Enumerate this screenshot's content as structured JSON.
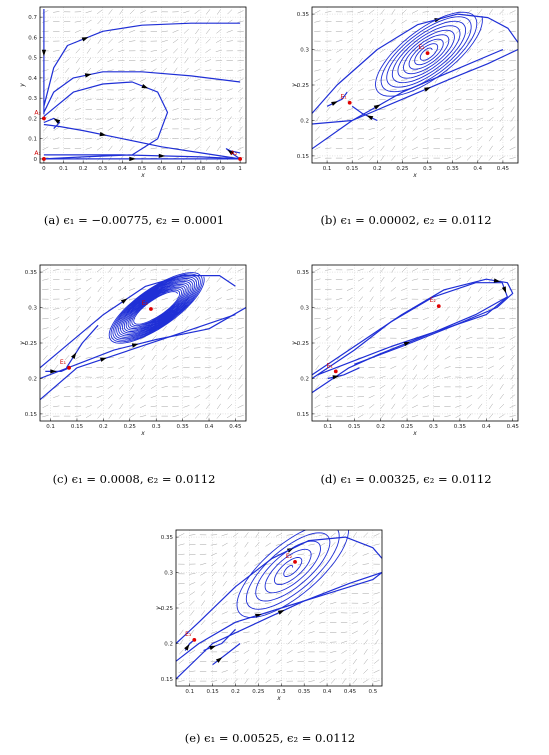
{
  "figure": {
    "panels": [
      {
        "caption": "(a)  ϵ₁ = −0.00775,  ϵ₂ = 0.0001"
      },
      {
        "caption": "(b)  ϵ₁ = 0.00002,  ϵ₂ = 0.0112"
      },
      {
        "caption": "(c)  ϵ₁ = 0.0008,  ϵ₂ = 0.0112"
      },
      {
        "caption": "(d)  ϵ₁ = 0.00325,  ϵ₂ = 0.0112"
      },
      {
        "caption": "(e)  ϵ₁ = 0.00525,  ϵ₂ = 0.0112"
      }
    ]
  },
  "chart_data": [
    {
      "type": "phase-portrait",
      "xlabel": "x",
      "ylabel": "y",
      "xlim": [
        -0.02,
        1.03
      ],
      "ylim": [
        -0.02,
        0.75
      ],
      "xticks": [
        "0",
        "0.1",
        "0.2",
        "0.3",
        "0.4",
        "0.5",
        "0.6",
        "0.7",
        "0.8",
        "0.9",
        "1"
      ],
      "xtick_values": [
        0,
        0.1,
        0.2,
        0.3,
        0.4,
        0.5,
        0.6,
        0.7,
        0.8,
        0.9,
        1
      ],
      "yticks": [
        "0",
        "0.1",
        "0.2",
        "0.3",
        "0.4",
        "0.5",
        "0.6",
        "0.7"
      ],
      "ytick_values": [
        0,
        0.1,
        0.2,
        0.3,
        0.4,
        0.5,
        0.6,
        0.7
      ],
      "equilibria": [
        {
          "label": "A₁",
          "x": 0.0,
          "y": 0.0
        },
        {
          "label": "A₂",
          "x": 1.0,
          "y": 0.0
        },
        {
          "label": "A₃",
          "x": 0.0,
          "y": 0.2
        }
      ],
      "trajectories": [
        [
          [
            0.0,
            0.74
          ],
          [
            0.0,
            0.6
          ],
          [
            0.0,
            0.45
          ],
          [
            0.0,
            0.3
          ],
          [
            0.0,
            0.22
          ]
        ],
        [
          [
            0.0,
            0.26
          ],
          [
            0.05,
            0.45
          ],
          [
            0.12,
            0.56
          ],
          [
            0.3,
            0.63
          ],
          [
            0.5,
            0.66
          ],
          [
            0.75,
            0.67
          ],
          [
            1.0,
            0.67
          ]
        ],
        [
          [
            0.0,
            0.23
          ],
          [
            0.05,
            0.33
          ],
          [
            0.15,
            0.4
          ],
          [
            0.3,
            0.43
          ],
          [
            0.5,
            0.43
          ],
          [
            0.75,
            0.41
          ],
          [
            1.0,
            0.38
          ]
        ],
        [
          [
            0.0,
            0.21
          ],
          [
            0.05,
            0.25
          ],
          [
            0.15,
            0.33
          ],
          [
            0.3,
            0.37
          ],
          [
            0.45,
            0.38
          ],
          [
            0.58,
            0.33
          ],
          [
            0.63,
            0.23
          ],
          [
            0.58,
            0.1
          ],
          [
            0.45,
            0.02
          ],
          [
            0.2,
            0.01
          ],
          [
            0.0,
            0.0
          ]
        ],
        [
          [
            0.0,
            0.17
          ],
          [
            0.08,
            0.16
          ],
          [
            0.2,
            0.14
          ],
          [
            0.4,
            0.1
          ],
          [
            0.6,
            0.06
          ],
          [
            0.8,
            0.03
          ],
          [
            1.0,
            0.0
          ]
        ],
        [
          [
            0.05,
            0.15
          ],
          [
            0.08,
            0.18
          ],
          [
            0.05,
            0.2
          ],
          [
            0.0,
            0.18
          ]
        ],
        [
          [
            0.0,
            0.0
          ],
          [
            0.3,
            0.0
          ],
          [
            0.6,
            0.0
          ],
          [
            0.9,
            0.0
          ],
          [
            1.0,
            0.0
          ]
        ],
        [
          [
            0.0,
            0.02
          ],
          [
            0.4,
            0.02
          ],
          [
            0.8,
            0.01
          ],
          [
            1.0,
            0.0
          ]
        ],
        [
          [
            1.0,
            0.0
          ],
          [
            0.97,
            0.02
          ],
          [
            0.93,
            0.05
          ],
          [
            0.95,
            0.04
          ],
          [
            1.0,
            0.03
          ]
        ]
      ]
    },
    {
      "type": "phase-portrait",
      "xlabel": "x",
      "ylabel": "y",
      "xlim": [
        0.07,
        0.48
      ],
      "ylim": [
        0.14,
        0.36
      ],
      "xticks": [
        "0.1",
        "0.15",
        "0.2",
        "0.25",
        "0.3",
        "0.35",
        "0.4",
        "0.45"
      ],
      "xtick_values": [
        0.1,
        0.15,
        0.2,
        0.25,
        0.3,
        0.35,
        0.4,
        0.45
      ],
      "yticks": [
        "0.15",
        "0.2",
        "0.25",
        "0.3",
        "0.35"
      ],
      "ytick_values": [
        0.15,
        0.2,
        0.25,
        0.3,
        0.35
      ],
      "equilibria": [
        {
          "label": "E₁",
          "x": 0.145,
          "y": 0.225
        },
        {
          "label": "E₂",
          "x": 0.3,
          "y": 0.295
        }
      ],
      "trajectories": [
        [
          [
            0.07,
            0.21
          ],
          [
            0.12,
            0.25
          ],
          [
            0.2,
            0.3
          ],
          [
            0.28,
            0.335
          ],
          [
            0.36,
            0.35
          ],
          [
            0.42,
            0.345
          ],
          [
            0.46,
            0.33
          ],
          [
            0.48,
            0.31
          ]
        ],
        [
          [
            0.07,
            0.195
          ],
          [
            0.15,
            0.2
          ],
          [
            0.25,
            0.24
          ],
          [
            0.35,
            0.27
          ],
          [
            0.45,
            0.3
          ]
        ],
        [
          [
            0.07,
            0.16
          ],
          [
            0.15,
            0.2
          ],
          [
            0.25,
            0.23
          ],
          [
            0.35,
            0.26
          ],
          [
            0.42,
            0.28
          ],
          [
            0.48,
            0.3
          ]
        ],
        [
          [
            0.1,
            0.22
          ],
          [
            0.13,
            0.23
          ],
          [
            0.14,
            0.24
          ]
        ],
        [
          [
            0.2,
            0.2
          ],
          [
            0.17,
            0.21
          ],
          [
            0.15,
            0.22
          ]
        ]
      ],
      "spirals": [
        {
          "cx": 0.3,
          "cy": 0.295,
          "rx": [
            0.01,
            0.12
          ],
          "ry": [
            0.005,
            0.04
          ],
          "turns": 9
        }
      ]
    },
    {
      "type": "phase-portrait",
      "xlabel": "x",
      "ylabel": "y",
      "xlim": [
        0.08,
        0.47
      ],
      "ylim": [
        0.14,
        0.36
      ],
      "xticks": [
        "0.1",
        "0.15",
        "0.2",
        "0.25",
        "0.3",
        "0.35",
        "0.4",
        "0.45"
      ],
      "xtick_values": [
        0.1,
        0.15,
        0.2,
        0.25,
        0.3,
        0.35,
        0.4,
        0.45
      ],
      "yticks": [
        "0.15",
        "0.2",
        "0.25",
        "0.3",
        "0.35"
      ],
      "ytick_values": [
        0.15,
        0.2,
        0.25,
        0.3,
        0.35
      ],
      "equilibria": [
        {
          "label": "E₁",
          "x": 0.135,
          "y": 0.215
        },
        {
          "label": "E₂",
          "x": 0.29,
          "y": 0.298
        }
      ],
      "trajectories": [
        [
          [
            0.08,
            0.215
          ],
          [
            0.12,
            0.24
          ],
          [
            0.2,
            0.29
          ],
          [
            0.28,
            0.33
          ],
          [
            0.35,
            0.345
          ],
          [
            0.42,
            0.345
          ],
          [
            0.45,
            0.33
          ]
        ],
        [
          [
            0.08,
            0.2
          ],
          [
            0.15,
            0.22
          ],
          [
            0.22,
            0.24
          ],
          [
            0.3,
            0.255
          ],
          [
            0.4,
            0.27
          ],
          [
            0.47,
            0.3
          ]
        ],
        [
          [
            0.08,
            0.17
          ],
          [
            0.15,
            0.215
          ],
          [
            0.25,
            0.24
          ],
          [
            0.35,
            0.265
          ],
          [
            0.45,
            0.29
          ]
        ],
        [
          [
            0.13,
            0.215
          ],
          [
            0.16,
            0.25
          ],
          [
            0.19,
            0.275
          ]
        ],
        [
          [
            0.09,
            0.21
          ],
          [
            0.12,
            0.21
          ],
          [
            0.135,
            0.215
          ]
        ]
      ],
      "spirals": [
        {
          "cx": 0.3,
          "cy": 0.3,
          "rx": [
            0.045,
            0.1
          ],
          "ry": [
            0.012,
            0.03
          ],
          "turns": 14
        }
      ]
    },
    {
      "type": "phase-portrait",
      "xlabel": "x",
      "ylabel": "y",
      "xlim": [
        0.07,
        0.46
      ],
      "ylim": [
        0.14,
        0.36
      ],
      "xticks": [
        "0.1",
        "0.15",
        "0.2",
        "0.25",
        "0.3",
        "0.35",
        "0.4",
        "0.45"
      ],
      "xtick_values": [
        0.1,
        0.15,
        0.2,
        0.25,
        0.3,
        0.35,
        0.4,
        0.45
      ],
      "yticks": [
        "0.15",
        "0.2",
        "0.25",
        "0.3",
        "0.35"
      ],
      "ytick_values": [
        0.15,
        0.2,
        0.25,
        0.3,
        0.35
      ],
      "equilibria": [
        {
          "label": "E₁",
          "x": 0.115,
          "y": 0.21
        },
        {
          "label": "E₂",
          "x": 0.31,
          "y": 0.302
        }
      ],
      "trajectories": [
        [
          [
            0.07,
            0.2
          ],
          [
            0.15,
            0.24
          ],
          [
            0.22,
            0.28
          ],
          [
            0.3,
            0.315
          ],
          [
            0.38,
            0.335
          ],
          [
            0.43,
            0.335
          ],
          [
            0.44,
            0.315
          ],
          [
            0.4,
            0.29
          ],
          [
            0.32,
            0.27
          ],
          [
            0.22,
            0.245
          ],
          [
            0.15,
            0.225
          ],
          [
            0.08,
            0.205
          ]
        ],
        [
          [
            0.07,
            0.205
          ],
          [
            0.16,
            0.25
          ],
          [
            0.24,
            0.29
          ],
          [
            0.32,
            0.325
          ],
          [
            0.4,
            0.34
          ],
          [
            0.44,
            0.335
          ],
          [
            0.45,
            0.32
          ],
          [
            0.42,
            0.3
          ],
          [
            0.34,
            0.275
          ],
          [
            0.24,
            0.245
          ],
          [
            0.15,
            0.22
          ]
        ],
        [
          [
            0.07,
            0.18
          ],
          [
            0.14,
            0.215
          ],
          [
            0.2,
            0.235
          ],
          [
            0.3,
            0.265
          ],
          [
            0.38,
            0.29
          ],
          [
            0.44,
            0.315
          ]
        ],
        [
          [
            0.1,
            0.2
          ],
          [
            0.13,
            0.205
          ],
          [
            0.16,
            0.215
          ]
        ]
      ]
    },
    {
      "type": "phase-portrait",
      "xlabel": "x",
      "ylabel": "y",
      "xlim": [
        0.07,
        0.52
      ],
      "ylim": [
        0.14,
        0.36
      ],
      "xticks": [
        "0.1",
        "0.15",
        "0.2",
        "0.25",
        "0.3",
        "0.35",
        "0.4",
        "0.45",
        "0.5"
      ],
      "xtick_values": [
        0.1,
        0.15,
        0.2,
        0.25,
        0.3,
        0.35,
        0.4,
        0.45,
        0.5
      ],
      "yticks": [
        "0.15",
        "0.2",
        "0.25",
        "0.3",
        "0.35"
      ],
      "ytick_values": [
        0.15,
        0.2,
        0.25,
        0.3,
        0.35
      ],
      "equilibria": [
        {
          "label": "E₁",
          "x": 0.11,
          "y": 0.205
        },
        {
          "label": "E₂",
          "x": 0.33,
          "y": 0.315
        }
      ],
      "trajectories": [
        [
          [
            0.07,
            0.2
          ],
          [
            0.12,
            0.23
          ],
          [
            0.2,
            0.28
          ],
          [
            0.28,
            0.32
          ],
          [
            0.36,
            0.345
          ],
          [
            0.44,
            0.35
          ],
          [
            0.5,
            0.335
          ],
          [
            0.52,
            0.32
          ]
        ],
        [
          [
            0.07,
            0.175
          ],
          [
            0.12,
            0.2
          ],
          [
            0.2,
            0.23
          ],
          [
            0.3,
            0.25
          ],
          [
            0.4,
            0.27
          ],
          [
            0.5,
            0.29
          ],
          [
            0.52,
            0.3
          ]
        ],
        [
          [
            0.07,
            0.15
          ],
          [
            0.15,
            0.2
          ],
          [
            0.25,
            0.23
          ],
          [
            0.35,
            0.26
          ],
          [
            0.45,
            0.285
          ],
          [
            0.52,
            0.3
          ]
        ],
        [
          [
            0.09,
            0.19
          ],
          [
            0.1,
            0.2
          ],
          [
            0.11,
            0.205
          ]
        ],
        [
          [
            0.13,
            0.19
          ],
          [
            0.17,
            0.2
          ],
          [
            0.2,
            0.22
          ]
        ],
        [
          [
            0.15,
            0.17
          ],
          [
            0.18,
            0.185
          ],
          [
            0.21,
            0.2
          ]
        ]
      ],
      "spirals": [
        {
          "cx": 0.32,
          "cy": 0.305,
          "rx": [
            0.005,
            0.14
          ],
          "ry": [
            0.003,
            0.045
          ],
          "turns": 6
        }
      ]
    }
  ]
}
